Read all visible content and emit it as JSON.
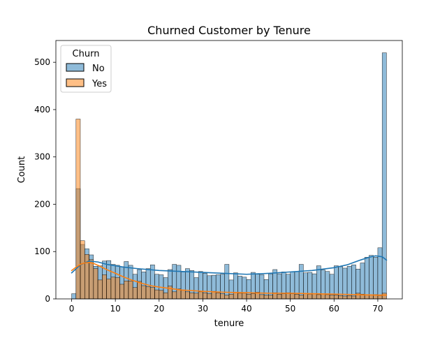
{
  "chart_data": {
    "type": "bar",
    "title": "Churned Customer by Tenure",
    "xlabel": "tenure",
    "ylabel": "Count",
    "xlim": [
      -3.6,
      75.6
    ],
    "ylim": [
      0,
      546
    ],
    "x_ticks": [
      0,
      10,
      20,
      30,
      40,
      50,
      60,
      70
    ],
    "y_ticks": [
      0,
      100,
      200,
      300,
      400,
      500
    ],
    "grid": false,
    "legend": {
      "title": "Churn",
      "placement": "top-left"
    },
    "bin_width": 0.986,
    "series": [
      {
        "name": "No",
        "color": "#1f77b4",
        "bins": [
          {
            "x": 0,
            "count": 11
          },
          {
            "x": 1,
            "count": 233
          },
          {
            "x": 2,
            "count": 115
          },
          {
            "x": 3,
            "count": 106
          },
          {
            "x": 4,
            "count": 93
          },
          {
            "x": 5,
            "count": 69
          },
          {
            "x": 6,
            "count": 70
          },
          {
            "x": 7,
            "count": 80
          },
          {
            "x": 8,
            "count": 81
          },
          {
            "x": 9,
            "count": 73
          },
          {
            "x": 10,
            "count": 71
          },
          {
            "x": 11,
            "count": 68
          },
          {
            "x": 12,
            "count": 79
          },
          {
            "x": 13,
            "count": 71
          },
          {
            "x": 14,
            "count": 52
          },
          {
            "x": 15,
            "count": 62
          },
          {
            "x": 16,
            "count": 57
          },
          {
            "x": 17,
            "count": 64
          },
          {
            "x": 18,
            "count": 72
          },
          {
            "x": 19,
            "count": 52
          },
          {
            "x": 20,
            "count": 51
          },
          {
            "x": 21,
            "count": 45
          },
          {
            "x": 22,
            "count": 62
          },
          {
            "x": 23,
            "count": 73
          },
          {
            "x": 24,
            "count": 71
          },
          {
            "x": 25,
            "count": 57
          },
          {
            "x": 26,
            "count": 64
          },
          {
            "x": 27,
            "count": 60
          },
          {
            "x": 28,
            "count": 45
          },
          {
            "x": 29,
            "count": 58
          },
          {
            "x": 30,
            "count": 54
          },
          {
            "x": 31,
            "count": 49
          },
          {
            "x": 32,
            "count": 50
          },
          {
            "x": 33,
            "count": 51
          },
          {
            "x": 34,
            "count": 52
          },
          {
            "x": 35,
            "count": 73
          },
          {
            "x": 36,
            "count": 40
          },
          {
            "x": 37,
            "count": 55
          },
          {
            "x": 38,
            "count": 48
          },
          {
            "x": 39,
            "count": 46
          },
          {
            "x": 40,
            "count": 41
          },
          {
            "x": 41,
            "count": 56
          },
          {
            "x": 42,
            "count": 52
          },
          {
            "x": 43,
            "count": 51
          },
          {
            "x": 44,
            "count": 41
          },
          {
            "x": 45,
            "count": 53
          },
          {
            "x": 46,
            "count": 62
          },
          {
            "x": 47,
            "count": 53
          },
          {
            "x": 48,
            "count": 57
          },
          {
            "x": 49,
            "count": 52
          },
          {
            "x": 50,
            "count": 57
          },
          {
            "x": 51,
            "count": 58
          },
          {
            "x": 52,
            "count": 73
          },
          {
            "x": 53,
            "count": 55
          },
          {
            "x": 54,
            "count": 56
          },
          {
            "x": 55,
            "count": 53
          },
          {
            "x": 56,
            "count": 70
          },
          {
            "x": 57,
            "count": 61
          },
          {
            "x": 58,
            "count": 58
          },
          {
            "x": 59,
            "count": 52
          },
          {
            "x": 60,
            "count": 70
          },
          {
            "x": 61,
            "count": 68
          },
          {
            "x": 62,
            "count": 65
          },
          {
            "x": 63,
            "count": 69
          },
          {
            "x": 64,
            "count": 72
          },
          {
            "x": 65,
            "count": 63
          },
          {
            "x": 66,
            "count": 76
          },
          {
            "x": 67,
            "count": 88
          },
          {
            "x": 68,
            "count": 92
          },
          {
            "x": 69,
            "count": 88
          },
          {
            "x": 70,
            "count": 108
          },
          {
            "x": 71,
            "count": 520
          }
        ],
        "kde": [
          [
            0,
            55
          ],
          [
            2,
            72
          ],
          [
            4,
            80
          ],
          [
            6,
            78
          ],
          [
            8,
            73
          ],
          [
            10,
            70
          ],
          [
            12,
            67
          ],
          [
            15,
            64
          ],
          [
            20,
            60
          ],
          [
            25,
            58
          ],
          [
            30,
            56
          ],
          [
            35,
            54
          ],
          [
            40,
            52
          ],
          [
            45,
            54
          ],
          [
            50,
            57
          ],
          [
            55,
            60
          ],
          [
            60,
            66
          ],
          [
            63,
            72
          ],
          [
            66,
            82
          ],
          [
            68,
            88
          ],
          [
            69.5,
            91
          ],
          [
            71,
            89
          ],
          [
            72,
            82
          ]
        ]
      },
      {
        "name": "Yes",
        "color": "#ff7f0e",
        "bins": [
          {
            "x": 0,
            "count": 0
          },
          {
            "x": 1,
            "count": 380
          },
          {
            "x": 2,
            "count": 123
          },
          {
            "x": 3,
            "count": 94
          },
          {
            "x": 4,
            "count": 83
          },
          {
            "x": 5,
            "count": 64
          },
          {
            "x": 6,
            "count": 40
          },
          {
            "x": 7,
            "count": 51
          },
          {
            "x": 8,
            "count": 42
          },
          {
            "x": 9,
            "count": 46
          },
          {
            "x": 10,
            "count": 45
          },
          {
            "x": 11,
            "count": 31
          },
          {
            "x": 12,
            "count": 38
          },
          {
            "x": 13,
            "count": 38
          },
          {
            "x": 14,
            "count": 24
          },
          {
            "x": 15,
            "count": 37
          },
          {
            "x": 16,
            "count": 28
          },
          {
            "x": 17,
            "count": 26
          },
          {
            "x": 18,
            "count": 24
          },
          {
            "x": 19,
            "count": 19
          },
          {
            "x": 20,
            "count": 18
          },
          {
            "x": 21,
            "count": 13
          },
          {
            "x": 22,
            "count": 27
          },
          {
            "x": 23,
            "count": 15
          },
          {
            "x": 24,
            "count": 21
          },
          {
            "x": 25,
            "count": 18
          },
          {
            "x": 26,
            "count": 15
          },
          {
            "x": 27,
            "count": 13
          },
          {
            "x": 28,
            "count": 12
          },
          {
            "x": 29,
            "count": 15
          },
          {
            "x": 30,
            "count": 13
          },
          {
            "x": 31,
            "count": 11
          },
          {
            "x": 32,
            "count": 16
          },
          {
            "x": 33,
            "count": 13
          },
          {
            "x": 34,
            "count": 11
          },
          {
            "x": 35,
            "count": 8
          },
          {
            "x": 36,
            "count": 10
          },
          {
            "x": 37,
            "count": 14
          },
          {
            "x": 38,
            "count": 12
          },
          {
            "x": 39,
            "count": 12
          },
          {
            "x": 40,
            "count": 10
          },
          {
            "x": 41,
            "count": 11
          },
          {
            "x": 42,
            "count": 14
          },
          {
            "x": 43,
            "count": 9
          },
          {
            "x": 44,
            "count": 8
          },
          {
            "x": 45,
            "count": 8
          },
          {
            "x": 46,
            "count": 13
          },
          {
            "x": 47,
            "count": 10
          },
          {
            "x": 48,
            "count": 11
          },
          {
            "x": 49,
            "count": 13
          },
          {
            "x": 50,
            "count": 11
          },
          {
            "x": 51,
            "count": 10
          },
          {
            "x": 52,
            "count": 8
          },
          {
            "x": 53,
            "count": 11
          },
          {
            "x": 54,
            "count": 10
          },
          {
            "x": 55,
            "count": 11
          },
          {
            "x": 56,
            "count": 9
          },
          {
            "x": 57,
            "count": 10
          },
          {
            "x": 58,
            "count": 9
          },
          {
            "x": 59,
            "count": 8
          },
          {
            "x": 60,
            "count": 8
          },
          {
            "x": 61,
            "count": 7
          },
          {
            "x": 62,
            "count": 6
          },
          {
            "x": 63,
            "count": 7
          },
          {
            "x": 64,
            "count": 6
          },
          {
            "x": 65,
            "count": 12
          },
          {
            "x": 66,
            "count": 10
          },
          {
            "x": 67,
            "count": 8
          },
          {
            "x": 68,
            "count": 8
          },
          {
            "x": 69,
            "count": 9
          },
          {
            "x": 70,
            "count": 7
          },
          {
            "x": 71,
            "count": 12
          }
        ],
        "kde": [
          [
            0,
            60
          ],
          [
            1,
            67
          ],
          [
            2,
            73
          ],
          [
            3,
            76
          ],
          [
            4,
            77
          ],
          [
            5,
            75
          ],
          [
            6,
            71
          ],
          [
            8,
            62
          ],
          [
            10,
            54
          ],
          [
            12,
            46
          ],
          [
            14,
            39
          ],
          [
            16,
            33
          ],
          [
            18,
            28
          ],
          [
            20,
            25
          ],
          [
            25,
            19
          ],
          [
            30,
            16
          ],
          [
            35,
            14
          ],
          [
            40,
            13
          ],
          [
            45,
            12
          ],
          [
            50,
            12
          ],
          [
            55,
            11
          ],
          [
            60,
            10
          ],
          [
            65,
            9
          ],
          [
            70,
            8
          ],
          [
            72,
            8
          ]
        ]
      }
    ]
  }
}
